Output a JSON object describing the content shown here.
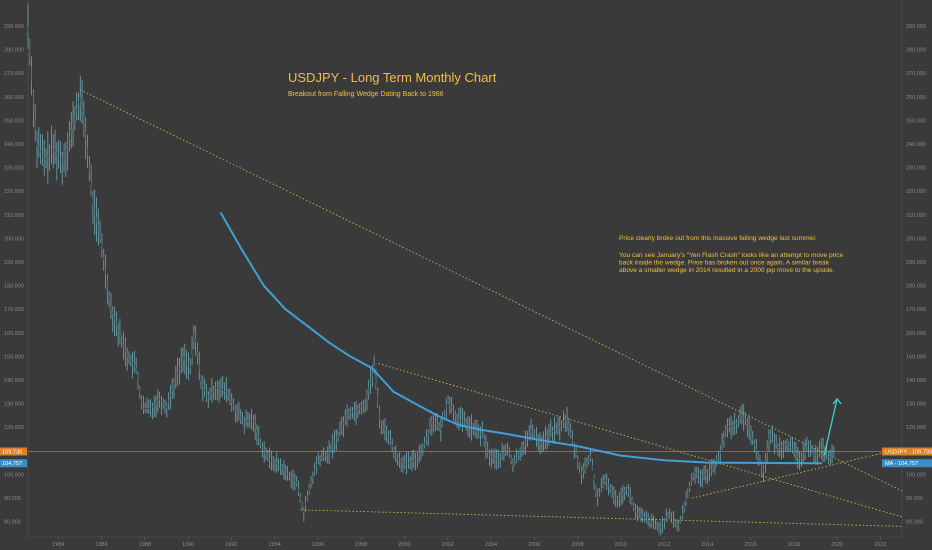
{
  "chart_data": {
    "type": "line",
    "title": "USDJPY - Long Term Monthly Chart",
    "subtitle": "Breakout from Falling Wedge Dating Back to 1986",
    "annotation_lines": [
      "Price clearly broke out from this massive falling wedge last summer.",
      "",
      "You can see January's \"Yen Flash Crash\" looks like an attempt to move price",
      "back inside the wedge.  Price has broken out once again.  A similar break",
      "above a smaller wedge in 2014 resulted in a 2000 pip move to the upside."
    ],
    "x_ticks": [
      "1984",
      "1986",
      "1988",
      "1990",
      "1992",
      "1994",
      "1996",
      "1998",
      "2000",
      "2002",
      "2004",
      "2006",
      "2008",
      "2010",
      "2012",
      "2014",
      "2016",
      "2018",
      "2020",
      "2022"
    ],
    "xlim": [
      1982.6,
      2023.0
    ],
    "ylim": [
      73.5,
      301
    ],
    "y_ticks": [
      "80.000",
      "90.000",
      "100.000",
      "110.000",
      "120.000",
      "130.000",
      "140.000",
      "150.000",
      "160.000",
      "170.000",
      "180.000",
      "190.000",
      "200.000",
      "210.000",
      "220.000",
      "230.000",
      "240.000",
      "250.000",
      "260.000",
      "270.000",
      "280.000",
      "290.000"
    ],
    "y_ticks_right": [
      "80.000",
      "90.000",
      "100.000",
      "110.000",
      "120.000",
      "130.000",
      "140.000",
      "150.000",
      "160.000",
      "170.000",
      "180.000",
      "190.000",
      "200.000",
      "210.000",
      "220.000",
      "230.000",
      "240.000",
      "250.000",
      "260.000",
      "270.000",
      "280.000",
      "290.000"
    ],
    "grid": false,
    "price_series": {
      "color": "#5aa3b0",
      "points": [
        [
          1982.6,
          290
        ],
        [
          1983.0,
          240
        ],
        [
          1983.4,
          233
        ],
        [
          1983.8,
          238
        ],
        [
          1984.2,
          232
        ],
        [
          1984.6,
          245
        ],
        [
          1985.0,
          260
        ],
        [
          1985.2,
          250
        ],
        [
          1985.6,
          215
        ],
        [
          1986.0,
          198
        ],
        [
          1986.4,
          172
        ],
        [
          1986.8,
          160
        ],
        [
          1987.2,
          150
        ],
        [
          1987.6,
          145
        ],
        [
          1987.9,
          128
        ],
        [
          1988.3,
          128
        ],
        [
          1988.7,
          132
        ],
        [
          1989.0,
          128
        ],
        [
          1989.4,
          140
        ],
        [
          1989.8,
          150
        ],
        [
          1990.1,
          145
        ],
        [
          1990.3,
          160
        ],
        [
          1990.6,
          140
        ],
        [
          1990.9,
          132
        ],
        [
          1991.3,
          137
        ],
        [
          1991.8,
          135
        ],
        [
          1992.2,
          127
        ],
        [
          1992.6,
          122
        ],
        [
          1993.0,
          123
        ],
        [
          1993.4,
          112
        ],
        [
          1993.8,
          106
        ],
        [
          1994.2,
          104
        ],
        [
          1994.6,
          100
        ],
        [
          1995.0,
          97
        ],
        [
          1995.35,
          84
        ],
        [
          1995.7,
          97
        ],
        [
          1996.0,
          106
        ],
        [
          1996.5,
          109
        ],
        [
          1997.0,
          118
        ],
        [
          1997.4,
          126
        ],
        [
          1997.8,
          127
        ],
        [
          1998.2,
          130
        ],
        [
          1998.6,
          146
        ],
        [
          1998.9,
          121
        ],
        [
          1999.2,
          118
        ],
        [
          1999.6,
          108
        ],
        [
          2000.0,
          104
        ],
        [
          2000.5,
          106
        ],
        [
          2000.9,
          112
        ],
        [
          2001.3,
          123
        ],
        [
          2001.7,
          119
        ],
        [
          2002.0,
          132
        ],
        [
          2002.4,
          124
        ],
        [
          2002.8,
          122
        ],
        [
          2003.2,
          119
        ],
        [
          2003.6,
          117
        ],
        [
          2003.9,
          108
        ],
        [
          2004.3,
          106
        ],
        [
          2004.8,
          111
        ],
        [
          2005.0,
          104
        ],
        [
          2005.5,
          112
        ],
        [
          2005.9,
          119
        ],
        [
          2006.3,
          113
        ],
        [
          2006.8,
          118
        ],
        [
          2007.2,
          120
        ],
        [
          2007.5,
          124
        ],
        [
          2007.8,
          113
        ],
        [
          2008.2,
          100
        ],
        [
          2008.6,
          108
        ],
        [
          2008.9,
          90
        ],
        [
          2009.3,
          98
        ],
        [
          2009.8,
          89
        ],
        [
          2010.3,
          94
        ],
        [
          2010.7,
          84
        ],
        [
          2011.0,
          82
        ],
        [
          2011.4,
          80
        ],
        [
          2011.8,
          77
        ],
        [
          2012.2,
          83
        ],
        [
          2012.7,
          78
        ],
        [
          2013.0,
          89
        ],
        [
          2013.4,
          101
        ],
        [
          2013.8,
          99
        ],
        [
          2014.2,
          102
        ],
        [
          2014.6,
          109
        ],
        [
          2014.9,
          120
        ],
        [
          2015.3,
          121
        ],
        [
          2015.6,
          125
        ],
        [
          2015.9,
          121
        ],
        [
          2016.2,
          112
        ],
        [
          2016.6,
          101
        ],
        [
          2016.9,
          117
        ],
        [
          2017.3,
          111
        ],
        [
          2017.7,
          113
        ],
        [
          2018.0,
          110
        ],
        [
          2018.3,
          106
        ],
        [
          2018.7,
          113
        ],
        [
          2019.0,
          108
        ],
        [
          2019.3,
          111
        ],
        [
          2019.7,
          107
        ],
        [
          2019.9,
          109.73
        ]
      ]
    },
    "moving_average": {
      "label": "MA",
      "value": "104.757",
      "color": "#3fa0d8",
      "points": [
        [
          1991.5,
          211
        ],
        [
          1992.5,
          195
        ],
        [
          1993.5,
          180
        ],
        [
          1994.5,
          170
        ],
        [
          1995.5,
          163
        ],
        [
          1996.5,
          156
        ],
        [
          1997.5,
          150
        ],
        [
          1998.5,
          145
        ],
        [
          1999.5,
          135
        ],
        [
          2000.5,
          130
        ],
        [
          2001.5,
          125
        ],
        [
          2002.5,
          121
        ],
        [
          2003.5,
          119
        ],
        [
          2004.5,
          117.5
        ],
        [
          2006.0,
          115
        ],
        [
          2008.0,
          112
        ],
        [
          2010.0,
          108
        ],
        [
          2012.0,
          106
        ],
        [
          2014.0,
          105
        ],
        [
          2016.0,
          104.9
        ],
        [
          2018.0,
          104.8
        ],
        [
          2019.3,
          104.76
        ]
      ]
    },
    "trendlines": [
      {
        "name": "wedge-top-major",
        "from": [
          1985.0,
          263
        ],
        "to": [
          2023.0,
          93
        ]
      },
      {
        "name": "wedge-top-minor",
        "from": [
          1998.8,
          147
        ],
        "to": [
          2023.0,
          82
        ]
      },
      {
        "name": "wedge-bottom-major",
        "from": [
          1995.2,
          85
        ],
        "to": [
          2023.0,
          78
        ]
      },
      {
        "name": "wedge-lower-rising",
        "from": [
          2013.3,
          90
        ],
        "to": [
          2023.0,
          111
        ]
      }
    ],
    "projection_arrow": {
      "from": [
        2019.4,
        108
      ],
      "to": [
        2020.0,
        132
      ],
      "color": "#3fd0d0"
    },
    "price_tags": [
      {
        "name": "usdjpy-tag",
        "text": "USDJPY - 109.730",
        "left_text": "109.730",
        "value": 109.73,
        "color": "#d9802a"
      },
      {
        "name": "ma-tag",
        "text": "MA - 104.757",
        "left_text": "104.757",
        "value": 104.757,
        "color": "#3a8ec8"
      }
    ],
    "current_price_line": {
      "value": 109.73,
      "color": "#c8742a"
    }
  }
}
